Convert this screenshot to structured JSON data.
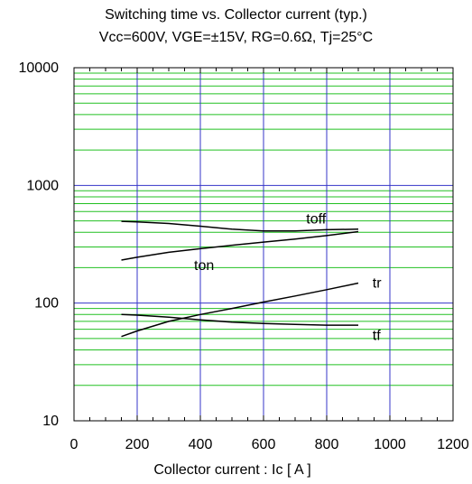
{
  "chart_data": {
    "type": "line",
    "title": "Switching time vs. Collector current (typ.)",
    "subtitle": "Vcc=600V, VGE=±15V, RG=0.6Ω, Tj=25°C",
    "xlabel": "Collector current : Ic [ A ]",
    "ylabel": "",
    "xlim": [
      0,
      1200
    ],
    "ylim": [
      10,
      10000
    ],
    "yscale": "log",
    "grid": true,
    "x_ticks": [
      "0",
      "200",
      "400",
      "600",
      "800",
      "1000",
      "1200"
    ],
    "y_ticks": [
      "10",
      "100",
      "1000",
      "10000"
    ],
    "series": [
      {
        "name": "toff",
        "x": [
          150,
          200,
          300,
          400,
          500,
          600,
          700,
          800,
          900
        ],
        "y": [
          495,
          490,
          475,
          450,
          425,
          410,
          410,
          420,
          425
        ]
      },
      {
        "name": "ton",
        "x": [
          150,
          200,
          300,
          400,
          500,
          600,
          700,
          800,
          900
        ],
        "y": [
          232,
          245,
          270,
          290,
          310,
          330,
          350,
          375,
          405
        ]
      },
      {
        "name": "tr",
        "x": [
          150,
          200,
          300,
          400,
          500,
          600,
          700,
          800,
          900
        ],
        "y": [
          52,
          58,
          70,
          80,
          90,
          102,
          115,
          130,
          148
        ]
      },
      {
        "name": "tf",
        "x": [
          150,
          200,
          300,
          400,
          500,
          600,
          700,
          800,
          900
        ],
        "y": [
          80,
          79,
          76,
          72,
          69,
          67,
          66,
          65,
          65
        ]
      }
    ],
    "colors": {
      "major_grid": "#3535c8",
      "minor_grid": "#22c022",
      "line": "#000000"
    }
  }
}
